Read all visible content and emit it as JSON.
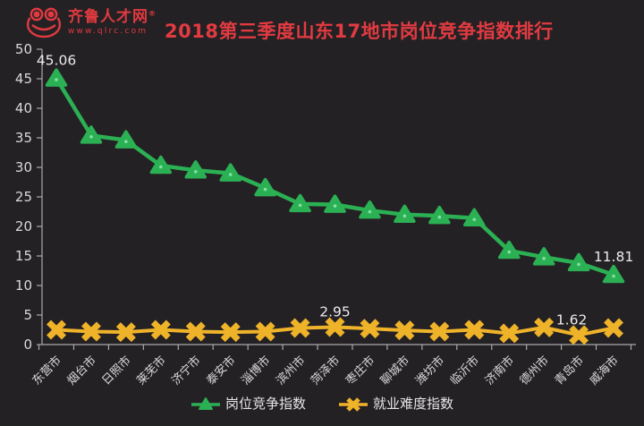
{
  "header": {
    "logo": {
      "brand": "齐鲁人才网",
      "registered": "®",
      "url": "www.qlrc.com",
      "color": "#df3a40"
    },
    "title": "2018第三季度山东17地市岗位竞争指数排行",
    "title_color": "#e13b41"
  },
  "chart_data": {
    "type": "line",
    "title": "2018第三季度山东17地市岗位竞争指数排行",
    "categories": [
      "东营市",
      "烟台市",
      "日照市",
      "莱芜市",
      "济宁市",
      "泰安市",
      "淄博市",
      "滨州市",
      "菏泽市",
      "枣庄市",
      "聊城市",
      "潍坊市",
      "临沂市",
      "济南市",
      "德州市",
      "青岛市",
      "威海市"
    ],
    "series": [
      {
        "name": "岗位竞争指数",
        "marker": "triangle",
        "color": "#2bb054",
        "marker_highlight": "#8ce5ad",
        "values": [
          45.06,
          35.4,
          34.6,
          30.3,
          29.5,
          29.0,
          26.5,
          23.8,
          23.7,
          22.7,
          22.0,
          21.8,
          21.4,
          15.9,
          14.8,
          13.8,
          11.81
        ]
      },
      {
        "name": "就业难度指数",
        "marker": "x",
        "color": "#efb32a",
        "values": [
          2.5,
          2.2,
          2.1,
          2.5,
          2.2,
          2.1,
          2.2,
          2.8,
          2.95,
          2.7,
          2.4,
          2.2,
          2.5,
          1.9,
          2.9,
          1.62,
          2.8
        ]
      }
    ],
    "annotations": [
      {
        "series": 0,
        "point": 0,
        "text": "45.06",
        "dx": 0
      },
      {
        "series": 0,
        "point": 16,
        "text": "11.81",
        "dx": 0
      },
      {
        "series": 1,
        "point": 8,
        "text": "2.95",
        "dx": 0
      },
      {
        "series": 1,
        "point": 15,
        "text": "1.62",
        "dx": -8
      }
    ],
    "ylim": [
      0,
      50
    ],
    "ytick_step": 5,
    "grid": false,
    "legend_position": "bottom",
    "background": "#242124",
    "axis_color": "#a9a9a9",
    "tick_label_color": "#d9d9d9",
    "annotation_color": "#ececec"
  },
  "legend": {
    "items": [
      {
        "label": "岗位竞争指数",
        "marker": "triangle",
        "color": "#2bb054"
      },
      {
        "label": "就业难度指数",
        "marker": "x",
        "color": "#efb32a"
      }
    ]
  }
}
